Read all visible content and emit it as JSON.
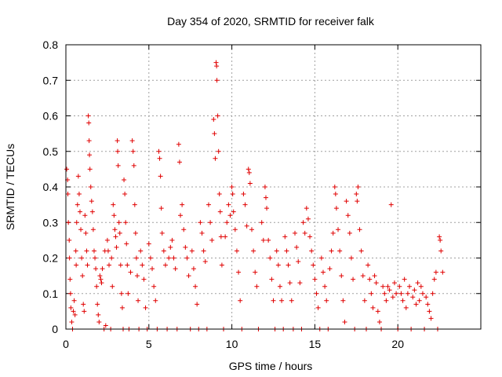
{
  "chart_data": {
    "type": "scatter",
    "title": "Day 354 of 2020, SRMTID for receiver falk",
    "xlabel": "GPS time / hours",
    "ylabel": "SRMTID / TECUs",
    "xlim": [
      0,
      25
    ],
    "ylim": [
      0,
      0.8
    ],
    "xticks": [
      0,
      5,
      10,
      15,
      20
    ],
    "yticks": [
      0,
      0.1,
      0.2,
      0.3,
      0.4,
      0.5,
      0.6,
      0.7,
      0.8
    ],
    "xtick_labels": [
      "0",
      "5",
      "10",
      "15",
      "20"
    ],
    "ytick_labels": [
      "0",
      "0.1",
      "0.2",
      "0.3",
      "0.4",
      "0.5",
      "0.6",
      "0.7",
      "0.8"
    ],
    "grid": true,
    "marker": "+",
    "color": "#e00000",
    "series": [
      {
        "name": "SRMTID",
        "points": [
          [
            0.05,
            0.45
          ],
          [
            0.1,
            0.42
          ],
          [
            0.12,
            0.38
          ],
          [
            0.15,
            0.3
          ],
          [
            0.2,
            0.25
          ],
          [
            0.22,
            0.2
          ],
          [
            0.25,
            0.14
          ],
          [
            0.28,
            0.1
          ],
          [
            0.3,
            0.06
          ],
          [
            0.35,
            0.02
          ],
          [
            0.4,
            0.0
          ],
          [
            0.45,
            0.05
          ],
          [
            0.5,
            0.08
          ],
          [
            0.55,
            0.04
          ],
          [
            0.6,
            0.22
          ],
          [
            0.62,
            0.18
          ],
          [
            0.65,
            0.3
          ],
          [
            0.7,
            0.35
          ],
          [
            0.75,
            0.43
          ],
          [
            0.8,
            0.38
          ],
          [
            0.85,
            0.33
          ],
          [
            0.9,
            0.28
          ],
          [
            0.95,
            0.2
          ],
          [
            1.0,
            0.15
          ],
          [
            1.05,
            0.07
          ],
          [
            1.1,
            0.05
          ],
          [
            1.15,
            0.32
          ],
          [
            1.2,
            0.27
          ],
          [
            1.25,
            0.22
          ],
          [
            1.3,
            0.18
          ],
          [
            1.35,
            0.6
          ],
          [
            1.38,
            0.58
          ],
          [
            1.4,
            0.53
          ],
          [
            1.42,
            0.49
          ],
          [
            1.45,
            0.45
          ],
          [
            1.5,
            0.4
          ],
          [
            1.55,
            0.36
          ],
          [
            1.6,
            0.33
          ],
          [
            1.65,
            0.28
          ],
          [
            1.7,
            0.22
          ],
          [
            1.75,
            0.2
          ],
          [
            1.8,
            0.17
          ],
          [
            1.85,
            0.12
          ],
          [
            1.9,
            0.07
          ],
          [
            1.95,
            0.04
          ],
          [
            2.0,
            0.02
          ],
          [
            2.05,
            0.15
          ],
          [
            2.1,
            0.14
          ],
          [
            2.15,
            0.13
          ],
          [
            2.2,
            0.17
          ],
          [
            2.3,
            0.0
          ],
          [
            2.35,
            0.22
          ],
          [
            2.4,
            0.01
          ],
          [
            2.5,
            0.25
          ],
          [
            2.55,
            0.22
          ],
          [
            2.6,
            0.18
          ],
          [
            2.7,
            0.0
          ],
          [
            2.75,
            0.2
          ],
          [
            2.8,
            0.12
          ],
          [
            2.85,
            0.35
          ],
          [
            2.9,
            0.32
          ],
          [
            2.95,
            0.28
          ],
          [
            3.0,
            0.26
          ],
          [
            3.05,
            0.23
          ],
          [
            3.1,
            0.53
          ],
          [
            3.12,
            0.5
          ],
          [
            3.15,
            0.46
          ],
          [
            3.2,
            0.3
          ],
          [
            3.25,
            0.27
          ],
          [
            3.3,
            0.18
          ],
          [
            3.35,
            0.1
          ],
          [
            3.4,
            0.06
          ],
          [
            3.45,
            0.0
          ],
          [
            3.5,
            0.42
          ],
          [
            3.55,
            0.38
          ],
          [
            3.6,
            0.3
          ],
          [
            3.65,
            0.24
          ],
          [
            3.7,
            0.18
          ],
          [
            3.75,
            0.1
          ],
          [
            3.8,
            0.0
          ],
          [
            3.9,
            0.16
          ],
          [
            4.0,
            0.53
          ],
          [
            4.05,
            0.5
          ],
          [
            4.1,
            0.46
          ],
          [
            4.15,
            0.35
          ],
          [
            4.2,
            0.27
          ],
          [
            4.25,
            0.2
          ],
          [
            4.3,
            0.15
          ],
          [
            4.35,
            0.08
          ],
          [
            4.4,
            0.0
          ],
          [
            4.5,
            0.22
          ],
          [
            4.6,
            0.18
          ],
          [
            4.7,
            0.14
          ],
          [
            4.8,
            0.06
          ],
          [
            4.9,
            0.0
          ],
          [
            5.0,
            0.24
          ],
          [
            5.1,
            0.2
          ],
          [
            5.2,
            0.17
          ],
          [
            5.3,
            0.12
          ],
          [
            5.4,
            0.08
          ],
          [
            5.5,
            0.0
          ],
          [
            5.6,
            0.5
          ],
          [
            5.65,
            0.48
          ],
          [
            5.7,
            0.43
          ],
          [
            5.75,
            0.34
          ],
          [
            5.8,
            0.27
          ],
          [
            5.9,
            0.22
          ],
          [
            6.0,
            0.18
          ],
          [
            6.1,
            0.0
          ],
          [
            6.2,
            0.2
          ],
          [
            6.3,
            0.23
          ],
          [
            6.4,
            0.25
          ],
          [
            6.5,
            0.2
          ],
          [
            6.6,
            0.17
          ],
          [
            6.7,
            0.0
          ],
          [
            6.8,
            0.52
          ],
          [
            6.85,
            0.47
          ],
          [
            6.9,
            0.32
          ],
          [
            7.0,
            0.35
          ],
          [
            7.1,
            0.28
          ],
          [
            7.2,
            0.23
          ],
          [
            7.3,
            0.2
          ],
          [
            7.4,
            0.15
          ],
          [
            7.5,
            0.0
          ],
          [
            7.6,
            0.22
          ],
          [
            7.7,
            0.17
          ],
          [
            7.8,
            0.12
          ],
          [
            7.9,
            0.07
          ],
          [
            8.0,
            0.0
          ],
          [
            8.1,
            0.3
          ],
          [
            8.2,
            0.27
          ],
          [
            8.3,
            0.22
          ],
          [
            8.4,
            0.19
          ],
          [
            8.5,
            0.0
          ],
          [
            8.6,
            0.35
          ],
          [
            8.7,
            0.3
          ],
          [
            8.8,
            0.25
          ],
          [
            8.9,
            0.59
          ],
          [
            8.95,
            0.55
          ],
          [
            9.0,
            0.48
          ],
          [
            9.05,
            0.75
          ],
          [
            9.08,
            0.74
          ],
          [
            9.1,
            0.7
          ],
          [
            9.15,
            0.6
          ],
          [
            9.2,
            0.5
          ],
          [
            9.25,
            0.38
          ],
          [
            9.3,
            0.33
          ],
          [
            9.35,
            0.26
          ],
          [
            9.4,
            0.18
          ],
          [
            9.5,
            0.0
          ],
          [
            9.6,
            0.26
          ],
          [
            9.7,
            0.3
          ],
          [
            9.8,
            0.35
          ],
          [
            9.9,
            0.32
          ],
          [
            10.0,
            0.4
          ],
          [
            10.05,
            0.38
          ],
          [
            10.1,
            0.33
          ],
          [
            10.2,
            0.28
          ],
          [
            10.3,
            0.22
          ],
          [
            10.4,
            0.16
          ],
          [
            10.5,
            0.08
          ],
          [
            10.6,
            0.0
          ],
          [
            10.7,
            0.38
          ],
          [
            10.8,
            0.35
          ],
          [
            10.9,
            0.29
          ],
          [
            11.0,
            0.45
          ],
          [
            11.05,
            0.44
          ],
          [
            11.1,
            0.41
          ],
          [
            11.2,
            0.28
          ],
          [
            11.3,
            0.22
          ],
          [
            11.4,
            0.16
          ],
          [
            11.5,
            0.12
          ],
          [
            11.6,
            0.0
          ],
          [
            11.8,
            0.3
          ],
          [
            11.9,
            0.25
          ],
          [
            12.0,
            0.4
          ],
          [
            12.05,
            0.37
          ],
          [
            12.1,
            0.34
          ],
          [
            12.2,
            0.25
          ],
          [
            12.3,
            0.2
          ],
          [
            12.4,
            0.14
          ],
          [
            12.5,
            0.08
          ],
          [
            12.6,
            0.0
          ],
          [
            12.7,
            0.22
          ],
          [
            12.8,
            0.18
          ],
          [
            12.9,
            0.12
          ],
          [
            13.0,
            0.08
          ],
          [
            13.1,
            0.0
          ],
          [
            13.2,
            0.26
          ],
          [
            13.3,
            0.22
          ],
          [
            13.4,
            0.18
          ],
          [
            13.5,
            0.13
          ],
          [
            13.6,
            0.08
          ],
          [
            13.7,
            0.0
          ],
          [
            13.8,
            0.27
          ],
          [
            13.9,
            0.23
          ],
          [
            14.0,
            0.19
          ],
          [
            14.1,
            0.13
          ],
          [
            14.2,
            0.0
          ],
          [
            14.3,
            0.3
          ],
          [
            14.4,
            0.27
          ],
          [
            14.5,
            0.34
          ],
          [
            14.6,
            0.31
          ],
          [
            14.7,
            0.26
          ],
          [
            14.8,
            0.22
          ],
          [
            14.9,
            0.18
          ],
          [
            15.0,
            0.14
          ],
          [
            15.1,
            0.1
          ],
          [
            15.2,
            0.06
          ],
          [
            15.3,
            0.0
          ],
          [
            15.4,
            0.2
          ],
          [
            15.5,
            0.16
          ],
          [
            15.6,
            0.12
          ],
          [
            15.7,
            0.08
          ],
          [
            15.8,
            0.0
          ],
          [
            15.9,
            0.17
          ],
          [
            16.0,
            0.22
          ],
          [
            16.1,
            0.27
          ],
          [
            16.2,
            0.4
          ],
          [
            16.25,
            0.38
          ],
          [
            16.3,
            0.34
          ],
          [
            16.4,
            0.28
          ],
          [
            16.5,
            0.22
          ],
          [
            16.6,
            0.15
          ],
          [
            16.7,
            0.08
          ],
          [
            16.8,
            0.02
          ],
          [
            16.9,
            0.36
          ],
          [
            17.0,
            0.32
          ],
          [
            17.1,
            0.27
          ],
          [
            17.2,
            0.2
          ],
          [
            17.3,
            0.14
          ],
          [
            17.4,
            0.0
          ],
          [
            17.5,
            0.38
          ],
          [
            17.55,
            0.36
          ],
          [
            17.6,
            0.4
          ],
          [
            17.7,
            0.28
          ],
          [
            17.8,
            0.22
          ],
          [
            17.9,
            0.15
          ],
          [
            18.0,
            0.08
          ],
          [
            18.1,
            0.0
          ],
          [
            18.2,
            0.18
          ],
          [
            18.3,
            0.14
          ],
          [
            18.4,
            0.1
          ],
          [
            18.5,
            0.06
          ],
          [
            18.6,
            0.15
          ],
          [
            18.7,
            0.13
          ],
          [
            18.8,
            0.05
          ],
          [
            18.9,
            0.02
          ],
          [
            19.0,
            0.0
          ],
          [
            19.1,
            0.12
          ],
          [
            19.2,
            0.1
          ],
          [
            19.3,
            0.08
          ],
          [
            19.4,
            0.12
          ],
          [
            19.5,
            0.11
          ],
          [
            19.6,
            0.35
          ],
          [
            19.7,
            0.09
          ],
          [
            19.8,
            0.13
          ],
          [
            19.9,
            0.1
          ],
          [
            20.0,
            0.0
          ],
          [
            20.1,
            0.12
          ],
          [
            20.2,
            0.1
          ],
          [
            20.3,
            0.08
          ],
          [
            20.4,
            0.14
          ],
          [
            20.5,
            0.06
          ],
          [
            20.6,
            0.1
          ],
          [
            20.7,
            0.12
          ],
          [
            20.8,
            0.0
          ],
          [
            20.9,
            0.09
          ],
          [
            21.0,
            0.11
          ],
          [
            21.1,
            0.07
          ],
          [
            21.2,
            0.13
          ],
          [
            21.3,
            0.08
          ],
          [
            21.4,
            0.12
          ],
          [
            21.5,
            0.1
          ],
          [
            21.6,
            0.0
          ],
          [
            21.7,
            0.09
          ],
          [
            21.8,
            0.07
          ],
          [
            21.9,
            0.05
          ],
          [
            22.0,
            0.03
          ],
          [
            22.1,
            0.1
          ],
          [
            22.2,
            0.14
          ],
          [
            22.3,
            0.16
          ],
          [
            22.4,
            0.0
          ],
          [
            22.5,
            0.26
          ],
          [
            22.55,
            0.25
          ],
          [
            22.6,
            0.22
          ],
          [
            22.7,
            0.16
          ]
        ]
      }
    ]
  }
}
